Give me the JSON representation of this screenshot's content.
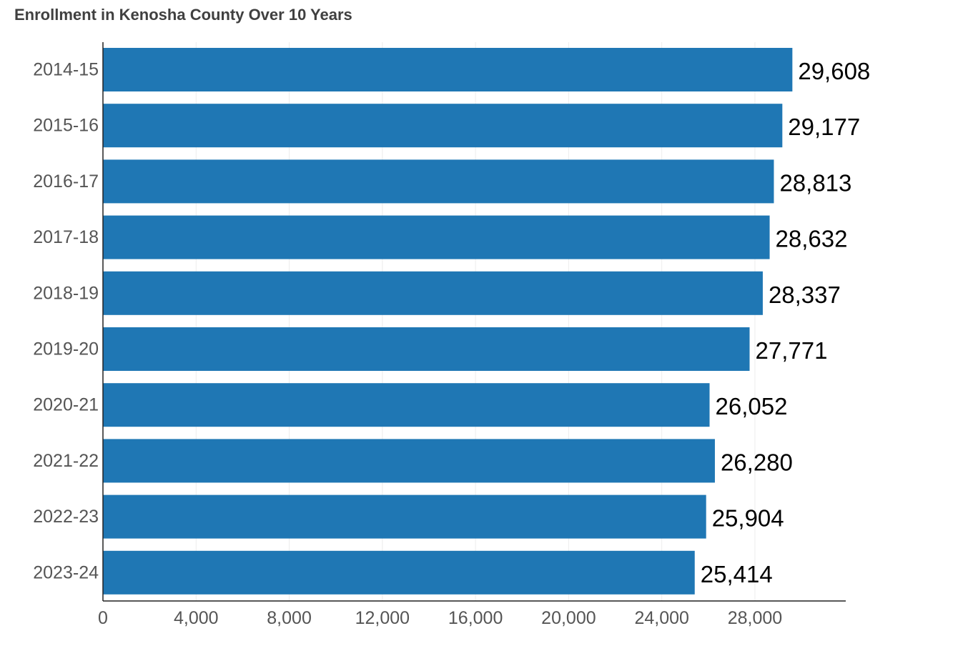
{
  "chart_data": {
    "type": "bar",
    "orientation": "horizontal",
    "title": "Enrollment in Kenosha County Over 10 Years",
    "xlabel": "",
    "ylabel": "",
    "categories": [
      "2014-15",
      "2015-16",
      "2016-17",
      "2017-18",
      "2018-19",
      "2019-20",
      "2020-21",
      "2021-22",
      "2022-23",
      "2023-24"
    ],
    "values": [
      29608,
      29177,
      28813,
      28632,
      28337,
      27771,
      26052,
      26280,
      25904,
      25414
    ],
    "value_labels": [
      "29,608",
      "29,177",
      "28,813",
      "28,632",
      "28,337",
      "27,771",
      "26,052",
      "26,280",
      "25,904",
      "25,414"
    ],
    "xlim": [
      0,
      31900
    ],
    "xticks": [
      0,
      4000,
      8000,
      12000,
      16000,
      20000,
      24000,
      28000
    ],
    "xtick_labels": [
      "0",
      "4,000",
      "8,000",
      "12,000",
      "16,000",
      "20,000",
      "24,000",
      "28,000"
    ],
    "grid": true,
    "legend": "none",
    "bar_color": "#1f77b4"
  }
}
